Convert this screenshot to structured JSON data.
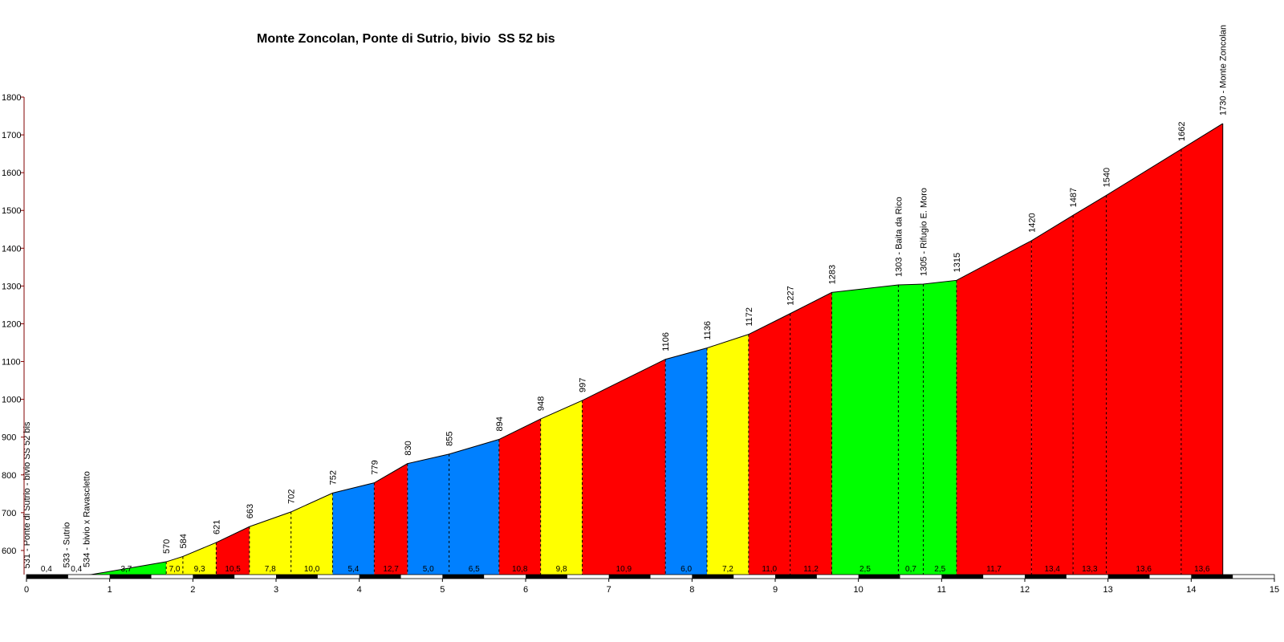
{
  "chart_data": {
    "type": "area",
    "title": "Monte Zoncolan, Ponte di Sutrio, bivio  SS 52 bis",
    "xlabel": "",
    "ylabel": "",
    "xlim": [
      0,
      15
    ],
    "ylim": [
      500,
      1800
    ],
    "x_ticks": [
      0,
      1,
      2,
      3,
      4,
      5,
      6,
      7,
      8,
      9,
      10,
      11,
      12,
      13,
      14,
      15
    ],
    "y_ticks": [
      600,
      700,
      800,
      900,
      1000,
      1100,
      1200,
      1300,
      1400,
      1500,
      1600,
      1700,
      1800
    ],
    "grid": false,
    "legend": "none",
    "colors": {
      "green": "#00ff00",
      "yellow": "#ffff00",
      "red": "#ff0000",
      "blue": "#0080ff",
      "axis": "#800000"
    },
    "segments": [
      {
        "x0": 0.0,
        "x1": 0.48,
        "grade": "0,4",
        "color": "green"
      },
      {
        "x0": 0.48,
        "x1": 0.72,
        "grade": "0,4",
        "color": "green"
      },
      {
        "x0": 0.72,
        "x1": 1.68,
        "grade": "3,7",
        "color": "green"
      },
      {
        "x0": 1.68,
        "x1": 1.88,
        "grade": "7,0",
        "color": "yellow"
      },
      {
        "x0": 1.88,
        "x1": 2.28,
        "grade": "9,3",
        "color": "yellow"
      },
      {
        "x0": 2.28,
        "x1": 2.68,
        "grade": "10,5",
        "color": "red"
      },
      {
        "x0": 2.68,
        "x1": 3.18,
        "grade": "7,8",
        "color": "yellow"
      },
      {
        "x0": 3.18,
        "x1": 3.68,
        "grade": "10,0",
        "color": "yellow"
      },
      {
        "x0": 3.68,
        "x1": 4.18,
        "grade": "5,4",
        "color": "blue"
      },
      {
        "x0": 4.18,
        "x1": 4.58,
        "grade": "12,7",
        "color": "red"
      },
      {
        "x0": 4.58,
        "x1": 5.08,
        "grade": "5,0",
        "color": "blue"
      },
      {
        "x0": 5.08,
        "x1": 5.68,
        "grade": "6,5",
        "color": "blue"
      },
      {
        "x0": 5.68,
        "x1": 6.18,
        "grade": "10,8",
        "color": "red"
      },
      {
        "x0": 6.18,
        "x1": 6.68,
        "grade": "9,8",
        "color": "yellow"
      },
      {
        "x0": 6.68,
        "x1": 7.68,
        "grade": "10,9",
        "color": "red"
      },
      {
        "x0": 7.68,
        "x1": 8.18,
        "grade": "6,0",
        "color": "blue"
      },
      {
        "x0": 8.18,
        "x1": 8.68,
        "grade": "7,2",
        "color": "yellow"
      },
      {
        "x0": 8.68,
        "x1": 9.18,
        "grade": "11,0",
        "color": "red"
      },
      {
        "x0": 9.18,
        "x1": 9.68,
        "grade": "11,2",
        "color": "red"
      },
      {
        "x0": 9.68,
        "x1": 10.48,
        "grade": "2,5",
        "color": "green"
      },
      {
        "x0": 10.48,
        "x1": 10.78,
        "grade": "0,7",
        "color": "green"
      },
      {
        "x0": 10.78,
        "x1": 11.18,
        "grade": "2,5",
        "color": "green"
      },
      {
        "x0": 11.18,
        "x1": 12.08,
        "grade": "11,7",
        "color": "red"
      },
      {
        "x0": 12.08,
        "x1": 12.58,
        "grade": "13,4",
        "color": "red"
      },
      {
        "x0": 12.58,
        "x1": 12.98,
        "grade": "13,3",
        "color": "red"
      },
      {
        "x0": 12.98,
        "x1": 13.88,
        "grade": "13,6",
        "color": "red"
      },
      {
        "x0": 13.88,
        "x1": 14.38,
        "grade": "13,6",
        "color": "red"
      }
    ],
    "points": [
      {
        "x": 0.0,
        "y": 531,
        "label": "531 - Ponte di Sutrio - bivio SS 52 bis"
      },
      {
        "x": 0.48,
        "y": 533,
        "label": "533 - Sutrio"
      },
      {
        "x": 0.72,
        "y": 534,
        "label": "534 - bivio x Ravascletto"
      },
      {
        "x": 1.68,
        "y": 570,
        "label": "570"
      },
      {
        "x": 1.88,
        "y": 584,
        "label": "584"
      },
      {
        "x": 2.28,
        "y": 621,
        "label": "621"
      },
      {
        "x": 2.68,
        "y": 663,
        "label": "663"
      },
      {
        "x": 3.18,
        "y": 702,
        "label": "702"
      },
      {
        "x": 3.68,
        "y": 752,
        "label": "752"
      },
      {
        "x": 4.18,
        "y": 779,
        "label": "779"
      },
      {
        "x": 4.58,
        "y": 830,
        "label": "830"
      },
      {
        "x": 5.08,
        "y": 855,
        "label": "855"
      },
      {
        "x": 5.68,
        "y": 894,
        "label": "894"
      },
      {
        "x": 6.18,
        "y": 948,
        "label": "948"
      },
      {
        "x": 6.68,
        "y": 997,
        "label": "997"
      },
      {
        "x": 7.68,
        "y": 1106,
        "label": "1106"
      },
      {
        "x": 8.18,
        "y": 1136,
        "label": "1136"
      },
      {
        "x": 8.68,
        "y": 1172,
        "label": "1172"
      },
      {
        "x": 9.18,
        "y": 1227,
        "label": "1227"
      },
      {
        "x": 9.68,
        "y": 1283,
        "label": "1283"
      },
      {
        "x": 10.48,
        "y": 1303,
        "label": "1303 - Baita da Rico"
      },
      {
        "x": 10.78,
        "y": 1305,
        "label": "1305 - Rifugio E. Moro"
      },
      {
        "x": 11.18,
        "y": 1315,
        "label": "1315"
      },
      {
        "x": 12.08,
        "y": 1420,
        "label": "1420"
      },
      {
        "x": 12.58,
        "y": 1487,
        "label": "1487"
      },
      {
        "x": 12.98,
        "y": 1540,
        "label": "1540"
      },
      {
        "x": 13.88,
        "y": 1662,
        "label": "1662"
      },
      {
        "x": 14.38,
        "y": 1730,
        "label": "1730 - Monte Zoncolan"
      }
    ]
  }
}
